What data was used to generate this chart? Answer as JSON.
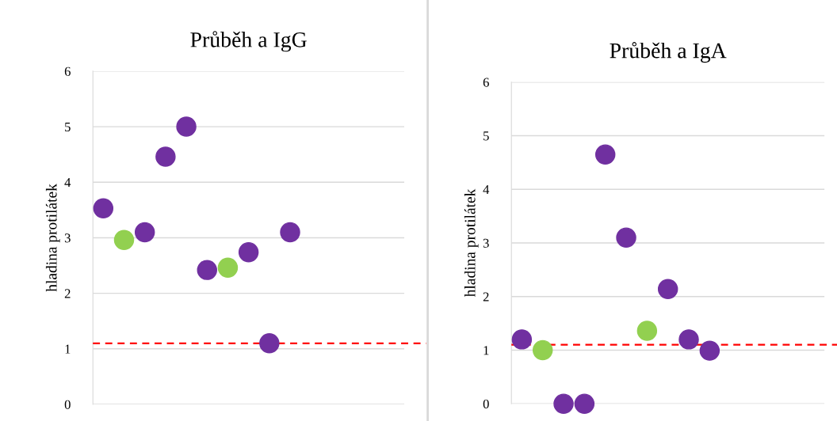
{
  "chart_data": [
    {
      "type": "scatter",
      "title": "Průběh a IgG",
      "ylabel": "hladina protilátek",
      "categories": [
        null,
        null,
        null,
        null,
        null,
        null,
        null,
        null,
        null,
        null,
        null,
        null,
        null,
        null,
        null
      ],
      "series": [
        {
          "values": [
            3.53,
            2.96,
            3.1,
            4.46,
            5.0,
            2.42,
            2.46,
            2.74,
            1.1,
            3.1,
            null,
            null,
            null,
            null,
            null
          ],
          "colors": [
            "#7030a0",
            "#92d050",
            "#7030a0",
            "#7030a0",
            "#7030a0",
            "#7030a0",
            "#92d050",
            "#7030a0",
            "#7030a0",
            "#7030a0",
            null,
            null,
            null,
            null,
            null
          ]
        }
      ],
      "ylim": [
        0,
        6
      ],
      "yticks": [
        0,
        1,
        2,
        3,
        4,
        5,
        6
      ],
      "grid": "y",
      "tick_labels": "y",
      "marker": "circle",
      "ref_lines": [
        {
          "axis": "y",
          "value": 1.1,
          "color": "#ff0000",
          "line_style": "dashed"
        }
      ]
    },
    {
      "type": "scatter",
      "title": "Průběh a IgA",
      "ylabel": "hladina protilátek",
      "categories": [
        null,
        null,
        null,
        null,
        null,
        null,
        null,
        null,
        null,
        null,
        null,
        null,
        null,
        null,
        null
      ],
      "series": [
        {
          "values": [
            1.2,
            1.0,
            0,
            0,
            4.65,
            3.1,
            1.36,
            2.14,
            1.2,
            0.99,
            null,
            null,
            null,
            null,
            null
          ],
          "colors": [
            "#7030a0",
            "#92d050",
            "#7030a0",
            "#7030a0",
            "#7030a0",
            "#7030a0",
            "#92d050",
            "#7030a0",
            "#7030a0",
            "#7030a0",
            null,
            null,
            null,
            null,
            null
          ]
        }
      ],
      "ylim": [
        0,
        6
      ],
      "yticks": [
        0,
        1,
        2,
        3,
        4,
        5,
        6
      ],
      "grid": "y",
      "tick_labels": "y",
      "marker": "circle",
      "ref_lines": [
        {
          "axis": "y",
          "value": 1.1,
          "color": "#ff0000",
          "line_style": "dashed"
        }
      ]
    }
  ]
}
